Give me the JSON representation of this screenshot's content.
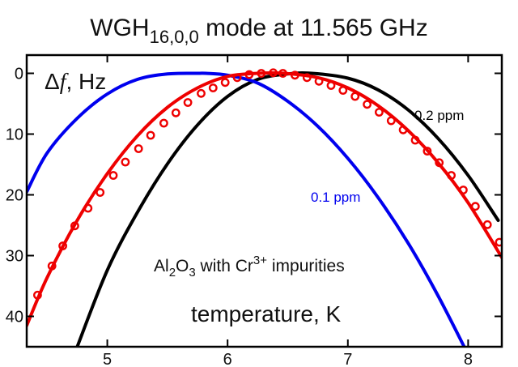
{
  "chart_data": {
    "type": "line",
    "title": {
      "main": "WGH",
      "sub": "16,0,0",
      "rest": " mode at 11.565 GHz"
    },
    "xlabel": "temperature, K",
    "ylabel": {
      "delta": "Δ",
      "f": "f",
      "rest": ", Hz"
    },
    "xlim": [
      4.33,
      8.28
    ],
    "ylim": [
      -3,
      45
    ],
    "y_inverted": true,
    "xticks": [
      5,
      6,
      7,
      8
    ],
    "xtick_labels": [
      "5",
      "6",
      "7",
      "8"
    ],
    "yticks": [
      0,
      10,
      20,
      30,
      40
    ],
    "ytick_labels": [
      "0",
      "10",
      "20",
      "30",
      "40"
    ],
    "annotation": {
      "pre": "Al",
      "s1": "2",
      "mid1": "O",
      "s2": "3",
      "mid2": " with Cr",
      "sup": "3+",
      "post": " impurities"
    },
    "series": [
      {
        "name": "0.2 ppm",
        "kind": "line",
        "color": "#000000",
        "x": [
          4.75,
          5.0,
          5.25,
          5.5,
          5.75,
          6.0,
          6.25,
          6.5,
          6.7,
          7.0,
          7.25,
          7.5,
          7.75,
          8.0,
          8.25
        ],
        "y": [
          45,
          32.4,
          22.9,
          14.9,
          8.5,
          3.8,
          1.0,
          0.1,
          0.0,
          0.8,
          2.7,
          6.0,
          10.7,
          16.8,
          24.2
        ]
      },
      {
        "name": "0.1 ppm",
        "kind": "line",
        "color": "#0000ee",
        "x": [
          4.33,
          4.5,
          4.75,
          5.0,
          5.25,
          5.5,
          5.75,
          5.82,
          6.0,
          6.25,
          6.5,
          6.75,
          7.0,
          7.25,
          7.5,
          7.75,
          8.0
        ],
        "y": [
          19.5,
          13.1,
          7.4,
          3.4,
          1.0,
          0.1,
          0.0,
          0.0,
          0.3,
          1.6,
          4.6,
          8.7,
          14.0,
          20.4,
          27.9,
          36.6,
          46.3
        ]
      },
      {
        "name": "",
        "kind": "line",
        "color": "#ee0000",
        "x": [
          4.33,
          4.5,
          4.75,
          5.0,
          5.25,
          5.5,
          5.75,
          6.0,
          6.25,
          6.47,
          6.75,
          7.0,
          7.25,
          7.5,
          7.75,
          8.0,
          8.28
        ],
        "y": [
          41.5,
          33.6,
          24.2,
          16.5,
          10.3,
          5.6,
          2.4,
          0.5,
          0.0,
          0.0,
          0.7,
          2.4,
          5.3,
          9.4,
          14.7,
          21.3,
          30.3
        ]
      },
      {
        "name": "",
        "kind": "points",
        "color": "#ee0000",
        "x": [
          4.42,
          4.54,
          4.63,
          4.73,
          4.84,
          4.94,
          5.05,
          5.15,
          5.26,
          5.36,
          5.47,
          5.57,
          5.67,
          5.78,
          5.88,
          5.98,
          6.08,
          6.18,
          6.28,
          6.38,
          6.46,
          6.56,
          6.66,
          6.76,
          6.86,
          6.96,
          7.06,
          7.16,
          7.26,
          7.36,
          7.46,
          7.56,
          7.66,
          7.76,
          7.86,
          7.96,
          8.06,
          8.16,
          8.26
        ],
        "y": [
          36.5,
          31.7,
          28.4,
          25.1,
          22.2,
          19.6,
          16.8,
          14.6,
          12.4,
          10.2,
          8.2,
          6.5,
          4.8,
          3.3,
          2.4,
          1.5,
          0.7,
          0.2,
          0.0,
          -0.1,
          0.0,
          0.3,
          0.7,
          1.3,
          2.0,
          2.8,
          3.8,
          5.1,
          6.4,
          7.8,
          9.3,
          11.0,
          12.8,
          14.7,
          16.8,
          19.2,
          21.9,
          24.9,
          27.8
        ]
      }
    ],
    "series_labels": [
      {
        "text": "0.2 ppm",
        "color": "#000000"
      },
      {
        "text": "0.1 ppm",
        "color": "#0000ee"
      }
    ],
    "grid": false,
    "colors": {
      "axis": "#000000",
      "text": "#111111"
    }
  }
}
